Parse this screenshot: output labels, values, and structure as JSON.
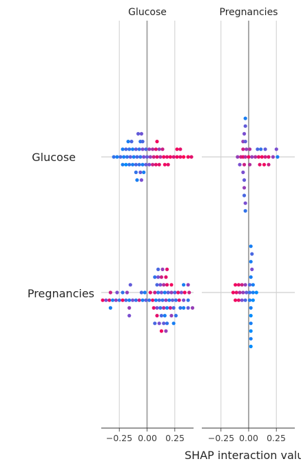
{
  "chart_data": {
    "type": "scatter",
    "subtype": "shap-interaction-summary",
    "panel_titles": [
      "Glucose",
      "Pregnancies"
    ],
    "row_labels": [
      "Glucose",
      "Pregnancies"
    ],
    "xlabel": "SHAP interaction valu",
    "xticks": [
      "−0.25",
      "0.00",
      "0.25"
    ],
    "tick_values": [
      -0.25,
      0,
      0.25
    ],
    "xlim": [
      -0.42,
      0.42
    ],
    "grid": true,
    "colormap": [
      "#008afb",
      "#7a4fd0",
      "#ff0052"
    ],
    "panels": [
      {
        "row": "Glucose",
        "col": "Glucose",
        "points": [
          [
            -0.08,
            3,
            0.4
          ],
          [
            -0.05,
            3,
            0.45
          ],
          [
            -0.17,
            2,
            0.1
          ],
          [
            -0.14,
            2,
            0.3
          ],
          [
            -0.06,
            2,
            0.2
          ],
          [
            -0.04,
            2,
            0.3
          ],
          [
            0.09,
            2,
            0.95
          ],
          [
            -0.22,
            1,
            0.1
          ],
          [
            -0.19,
            1,
            0.3
          ],
          [
            -0.16,
            1,
            0.2
          ],
          [
            -0.13,
            1,
            0.1
          ],
          [
            -0.1,
            1,
            0.4
          ],
          [
            -0.07,
            1,
            0.2
          ],
          [
            -0.04,
            1,
            0.5
          ],
          [
            -0.01,
            1,
            0.3
          ],
          [
            0.02,
            1,
            0.6
          ],
          [
            0.05,
            1,
            0.7
          ],
          [
            0.08,
            1,
            0.9
          ],
          [
            0.11,
            1,
            0.6
          ],
          [
            0.14,
            1,
            0.8
          ],
          [
            0.27,
            1,
            0.95
          ],
          [
            0.3,
            1,
            0.9
          ],
          [
            -0.3,
            0,
            0.2
          ],
          [
            -0.27,
            0,
            0.1
          ],
          [
            -0.24,
            0,
            0.3
          ],
          [
            -0.21,
            0,
            0.1
          ],
          [
            -0.18,
            0,
            0.2
          ],
          [
            -0.15,
            0,
            0.4
          ],
          [
            -0.12,
            0,
            0.1
          ],
          [
            -0.09,
            0,
            0.3
          ],
          [
            -0.06,
            0,
            0.2
          ],
          [
            -0.03,
            0,
            0.5
          ],
          [
            0.0,
            0,
            0.4
          ],
          [
            0.03,
            0,
            0.6
          ],
          [
            0.06,
            0,
            0.8
          ],
          [
            0.09,
            0,
            0.9
          ],
          [
            0.12,
            0,
            0.7
          ],
          [
            0.15,
            0,
            0.95
          ],
          [
            0.18,
            0,
            0.9
          ],
          [
            0.21,
            0,
            0.95
          ],
          [
            0.24,
            0,
            0.85
          ],
          [
            0.27,
            0,
            0.95
          ],
          [
            0.3,
            0,
            0.9
          ],
          [
            0.33,
            0,
            1.0
          ],
          [
            0.37,
            0,
            0.95
          ],
          [
            0.4,
            0,
            0.9
          ],
          [
            -0.22,
            -1,
            0.1
          ],
          [
            -0.19,
            -1,
            0.0
          ],
          [
            -0.16,
            -1,
            0.2
          ],
          [
            -0.13,
            -1,
            0.1
          ],
          [
            -0.1,
            -1,
            0.3
          ],
          [
            -0.07,
            -1,
            0.2
          ],
          [
            -0.04,
            -1,
            0.1
          ],
          [
            -0.01,
            -1,
            0.4
          ],
          [
            0.02,
            -1,
            0.5
          ],
          [
            0.05,
            -1,
            0.8
          ],
          [
            0.08,
            -1,
            0.9
          ],
          [
            0.11,
            -1,
            0.9
          ],
          [
            0.16,
            -1,
            0.95
          ],
          [
            0.19,
            -1,
            0.9
          ],
          [
            -0.1,
            -2,
            0.2
          ],
          [
            -0.06,
            -2,
            0.4
          ],
          [
            -0.03,
            -2,
            0.1
          ],
          [
            -0.09,
            -3,
            0.1
          ],
          [
            -0.05,
            -3,
            0.5
          ]
        ]
      },
      {
        "row": "Glucose",
        "col": "Pregnancies",
        "points": [
          [
            -0.03,
            5,
            0.1
          ],
          [
            -0.03,
            4,
            0.4
          ],
          [
            -0.04,
            3,
            0.5
          ],
          [
            -0.05,
            2,
            0.6
          ],
          [
            -0.03,
            2,
            0.4
          ],
          [
            -0.05,
            1,
            0.8
          ],
          [
            -0.02,
            1,
            0.6
          ],
          [
            0.01,
            1,
            0.7
          ],
          [
            0.08,
            1,
            0.3
          ],
          [
            0.11,
            1,
            0.2
          ],
          [
            0.15,
            1,
            0.4
          ],
          [
            0.25,
            1,
            0.5
          ],
          [
            -0.1,
            0,
            0.6
          ],
          [
            -0.07,
            0,
            0.8
          ],
          [
            -0.05,
            0,
            0.9
          ],
          [
            -0.03,
            0,
            0.7
          ],
          [
            0.0,
            0,
            0.95
          ],
          [
            0.03,
            0,
            0.6
          ],
          [
            0.06,
            0,
            0.7
          ],
          [
            0.09,
            0,
            0.9
          ],
          [
            0.12,
            0,
            0.95
          ],
          [
            0.15,
            0,
            0.8
          ],
          [
            0.18,
            0,
            0.9
          ],
          [
            0.22,
            0,
            0.6
          ],
          [
            0.26,
            0,
            0.1
          ],
          [
            -0.08,
            -1,
            0.5
          ],
          [
            -0.04,
            -1,
            0.8
          ],
          [
            0.01,
            -1,
            0.7
          ],
          [
            0.1,
            -1,
            0.9
          ],
          [
            0.14,
            -1,
            0.95
          ],
          [
            0.18,
            -1,
            0.8
          ],
          [
            -0.05,
            -2,
            0.5
          ],
          [
            -0.04,
            -3,
            0.4
          ],
          [
            -0.04,
            -4,
            0.6
          ],
          [
            -0.04,
            -5,
            0.3
          ],
          [
            -0.03,
            -6,
            0.5
          ],
          [
            -0.03,
            -7,
            0.2
          ]
        ]
      },
      {
        "row": "Pregnancies",
        "col": "Glucose",
        "points": [
          [
            0.1,
            3,
            0.3
          ],
          [
            0.14,
            3,
            0.6
          ],
          [
            0.18,
            3,
            0.9
          ],
          [
            0.07,
            2,
            0.2
          ],
          [
            0.1,
            2,
            0.5
          ],
          [
            0.13,
            2,
            0.8
          ],
          [
            0.17,
            2,
            0.9
          ],
          [
            -0.15,
            1,
            0.4
          ],
          [
            0.09,
            1,
            0.3
          ],
          [
            0.12,
            1,
            0.5
          ],
          [
            0.15,
            1,
            0.7
          ],
          [
            0.18,
            1,
            0.9
          ],
          [
            0.22,
            1,
            0.95
          ],
          [
            0.33,
            1,
            0.1
          ],
          [
            0.37,
            1,
            0.6
          ],
          [
            -0.33,
            0,
            0.8
          ],
          [
            -0.27,
            0,
            0.5
          ],
          [
            -0.22,
            0,
            0.2
          ],
          [
            -0.18,
            0,
            0.6
          ],
          [
            -0.05,
            0,
            0.3
          ],
          [
            -0.02,
            0,
            0.1
          ],
          [
            0.03,
            0,
            0.9
          ],
          [
            0.07,
            0,
            0.8
          ],
          [
            0.1,
            0,
            0.2
          ],
          [
            0.13,
            0,
            0.5
          ],
          [
            0.16,
            0,
            0.1
          ],
          [
            0.19,
            0,
            0.4
          ],
          [
            0.22,
            0,
            0.6
          ],
          [
            0.25,
            0,
            0.3
          ],
          [
            0.28,
            0,
            0.9
          ],
          [
            0.31,
            0,
            0.5
          ],
          [
            0.34,
            0,
            0.95
          ],
          [
            0.38,
            0,
            0.8
          ],
          [
            -0.4,
            -1,
            0.95
          ],
          [
            -0.37,
            -1,
            0.5
          ],
          [
            -0.34,
            -1,
            0.9
          ],
          [
            -0.31,
            -1,
            0.1
          ],
          [
            -0.28,
            -1,
            0.6
          ],
          [
            -0.25,
            -1,
            0.2
          ],
          [
            -0.22,
            -1,
            0.95
          ],
          [
            -0.19,
            -1,
            0.3
          ],
          [
            -0.16,
            -1,
            0.1
          ],
          [
            -0.13,
            -1,
            0.5
          ],
          [
            -0.1,
            -1,
            0.2
          ],
          [
            -0.07,
            -1,
            0.8
          ],
          [
            -0.04,
            -1,
            0.1
          ],
          [
            -0.01,
            -1,
            0.4
          ],
          [
            0.02,
            -1,
            0.2
          ],
          [
            0.05,
            -1,
            0.9
          ],
          [
            0.08,
            -1,
            0.1
          ],
          [
            0.11,
            -1,
            0.3
          ],
          [
            0.14,
            -1,
            0.2
          ],
          [
            0.17,
            -1,
            0.6
          ],
          [
            0.2,
            -1,
            0.1
          ],
          [
            0.23,
            -1,
            0.4
          ],
          [
            0.26,
            -1,
            0.2
          ],
          [
            0.29,
            -1,
            0.9
          ],
          [
            0.33,
            -1,
            0.5
          ],
          [
            0.37,
            -1,
            0.2
          ],
          [
            -0.33,
            -2,
            0.1
          ],
          [
            -0.16,
            -2,
            0.6
          ],
          [
            0.06,
            -2,
            0.9
          ],
          [
            0.09,
            -2,
            0.5
          ],
          [
            0.12,
            -2,
            0.2
          ],
          [
            0.15,
            -2,
            0.7
          ],
          [
            0.18,
            -2,
            0.1
          ],
          [
            0.21,
            -2,
            0.8
          ],
          [
            0.24,
            -2,
            0.3
          ],
          [
            0.3,
            -2,
            0.2
          ],
          [
            0.33,
            -2,
            0.1
          ],
          [
            0.37,
            -2,
            0.4
          ],
          [
            0.41,
            -2,
            0.6
          ],
          [
            -0.16,
            -3,
            0.5
          ],
          [
            0.09,
            -3,
            0.9
          ],
          [
            0.13,
            -3,
            0.3
          ],
          [
            0.16,
            -3,
            0.1
          ],
          [
            0.22,
            -3,
            0.6
          ],
          [
            0.26,
            -3,
            0.2
          ],
          [
            0.07,
            -4,
            0.3
          ],
          [
            0.11,
            -4,
            0.5
          ],
          [
            0.15,
            -4,
            0.4
          ],
          [
            0.18,
            -4,
            0.2
          ],
          [
            0.24,
            -4,
            0.1
          ],
          [
            0.13,
            -5,
            0.95
          ],
          [
            0.17,
            -5,
            0.6
          ]
        ]
      },
      {
        "row": "Pregnancies",
        "col": "Pregnancies",
        "points": [
          [
            0.02,
            6,
            0.1
          ],
          [
            0.03,
            5,
            0.3
          ],
          [
            0.02,
            4,
            0.1
          ],
          [
            0.03,
            3,
            0.5
          ],
          [
            0.02,
            2,
            0.1
          ],
          [
            -0.12,
            1,
            0.95
          ],
          [
            -0.09,
            1,
            0.9
          ],
          [
            -0.06,
            1,
            0.8
          ],
          [
            -0.03,
            1,
            0.6
          ],
          [
            0.01,
            1,
            0.3
          ],
          [
            0.04,
            1,
            0.1
          ],
          [
            -0.14,
            0,
            0.95
          ],
          [
            -0.11,
            0,
            0.9
          ],
          [
            -0.08,
            0,
            0.7
          ],
          [
            -0.05,
            0,
            0.6
          ],
          [
            -0.02,
            0,
            0.4
          ],
          [
            0.01,
            0,
            0.2
          ],
          [
            0.04,
            0,
            0.1
          ],
          [
            0.07,
            0,
            0.0
          ],
          [
            -0.12,
            -1,
            0.95
          ],
          [
            -0.09,
            -1,
            0.9
          ],
          [
            -0.06,
            -1,
            0.5
          ],
          [
            -0.03,
            -1,
            0.3
          ],
          [
            0.01,
            -1,
            0.1
          ],
          [
            0.04,
            -1,
            0.0
          ],
          [
            0.02,
            -2,
            0.1
          ],
          [
            0.02,
            -3,
            0.0
          ],
          [
            0.02,
            -4,
            0.1
          ],
          [
            0.02,
            -5,
            0.0
          ],
          [
            0.02,
            -6,
            0.1
          ],
          [
            0.02,
            -7,
            0.0
          ]
        ]
      }
    ]
  }
}
